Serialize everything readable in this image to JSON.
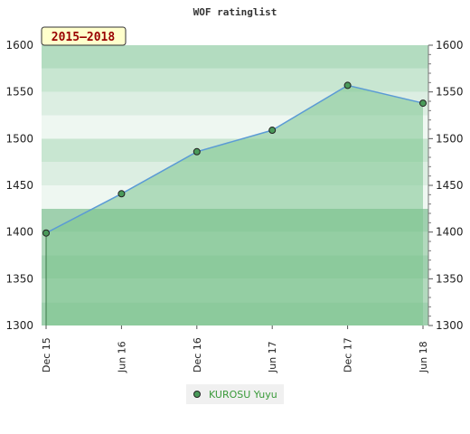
{
  "chart_data": {
    "type": "area",
    "title": "WOF ratinglist",
    "period_label": "2015–2018",
    "xlabel": "",
    "ylabel": "",
    "categories": [
      "Dec 15",
      "Jun 16",
      "Dec 16",
      "Jun 17",
      "Dec 17",
      "Jun 18"
    ],
    "ylim": [
      1300,
      1600
    ],
    "yticks": [
      1300,
      1350,
      1400,
      1450,
      1500,
      1550,
      1600
    ],
    "series": [
      {
        "name": "KUROSU Yuyu",
        "values": [
          1399,
          1441,
          1486,
          1509,
          1557,
          1538
        ]
      }
    ],
    "grid": true,
    "legend_position": "bottom",
    "colors": {
      "line": "#5b9bd5",
      "marker": "#4a9a5a",
      "area": "#7cc48e",
      "legend_bg": "#f0f0f0"
    }
  }
}
